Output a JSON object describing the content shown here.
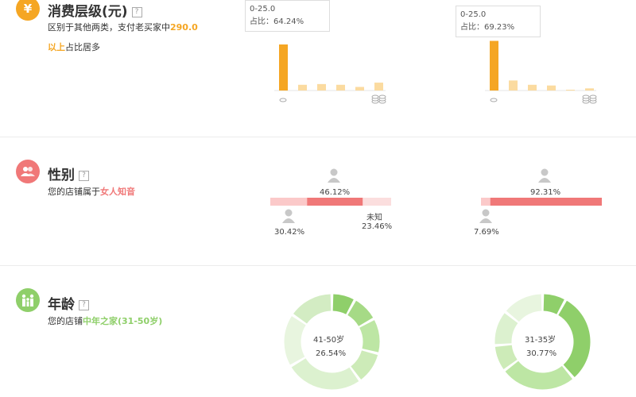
{
  "colors": {
    "orange": "#f5a623",
    "pink": "#f07878",
    "green": "#8fcf6a"
  },
  "consumption": {
    "title": "消费层级(元)",
    "help": "?",
    "desc_prefix": "区别于其他两类，支付老买家中",
    "desc_highlight1": "290.0",
    "desc_highlight2": "以上",
    "desc_suffix": "占比居多",
    "charts": [
      {
        "tooltip_range": "0-25.0",
        "tooltip_share": "占比：64.24%",
        "values": [
          64.24,
          8,
          9,
          8,
          5,
          11
        ]
      },
      {
        "tooltip_range": "0-25.0",
        "tooltip_share": "占比：69.23%",
        "values": [
          69.23,
          14,
          8,
          7,
          1,
          3
        ]
      }
    ]
  },
  "gender": {
    "title": "性别",
    "help": "?",
    "desc_prefix": "您的店铺属于",
    "desc_highlight": "女人知音",
    "bar1": {
      "female": "46.12%",
      "male": "30.42%",
      "unknown_label": "未知",
      "unknown": "23.46%",
      "female_val": 46.12,
      "male_val": 30.42,
      "unknown_val": 23.46
    },
    "bar2": {
      "female": "92.31%",
      "male": "7.69%",
      "female_val": 92.31,
      "male_val": 7.69
    }
  },
  "age": {
    "title": "年龄",
    "help": "?",
    "desc_prefix": "您的店铺",
    "desc_highlight": "中年之家(31-50岁)",
    "donut1": {
      "center_label": "41-50岁",
      "center_value": "26.54%",
      "values": [
        8,
        9,
        12,
        11,
        26.54,
        18,
        15.46
      ]
    },
    "donut2": {
      "center_label": "31-35岁",
      "center_value": "30.77%",
      "values": [
        8,
        30.77,
        26,
        9,
        12,
        14.23
      ]
    }
  }
}
